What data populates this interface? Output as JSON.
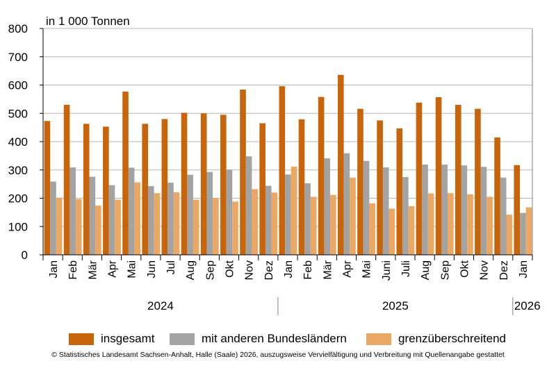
{
  "chart_data": {
    "type": "bar",
    "unit_label": "in 1 000 Tonnen",
    "ylim": [
      0,
      800
    ],
    "yticks": [
      0,
      100,
      200,
      300,
      400,
      500,
      600,
      700,
      800
    ],
    "grid": true,
    "legend_position": "bottom",
    "categories": [
      "Jan",
      "Feb",
      "Mär",
      "Apr",
      "Mai",
      "Jun",
      "Jul",
      "Aug",
      "Sep",
      "Okt",
      "Nov",
      "Dez",
      "Jan",
      "Feb",
      "Mär",
      "Apr",
      "Mai",
      "Juni",
      "Juli",
      "Aug",
      "Sep",
      "Okt",
      "Nov",
      "Dez",
      "Jan"
    ],
    "years": [
      {
        "label": "2024",
        "start": 0,
        "count": 12
      },
      {
        "label": "2025",
        "start": 12,
        "count": 12
      },
      {
        "label": "2026",
        "start": 24,
        "count": 1
      }
    ],
    "series": [
      {
        "name": "insgesamt",
        "color": "#c8650a",
        "values": [
          473,
          530,
          463,
          453,
          577,
          463,
          480,
          502,
          500,
          495,
          584,
          465,
          596,
          479,
          558,
          636,
          516,
          475,
          447,
          538,
          557,
          530,
          516,
          415,
          317
        ]
      },
      {
        "name": "mit anderen Bundesländern",
        "color": "#a3a3a3",
        "values": [
          259,
          309,
          276,
          246,
          308,
          243,
          255,
          283,
          293,
          301,
          348,
          244,
          284,
          253,
          341,
          359,
          332,
          309,
          275,
          319,
          319,
          316,
          311,
          273,
          148
        ]
      },
      {
        "name": "grenzüberschreitend",
        "color": "#eba764",
        "values": [
          202,
          197,
          174,
          195,
          256,
          218,
          221,
          195,
          201,
          188,
          232,
          220,
          312,
          205,
          212,
          273,
          182,
          163,
          172,
          217,
          218,
          214,
          205,
          142,
          168
        ]
      }
    ]
  },
  "copyright": "© Statistisches Landesamt Sachsen-Anhalt, Halle (Saale) 2026, auszugsweise Vervielfältigung und Verbreitung mit Quellenangabe gestattet"
}
